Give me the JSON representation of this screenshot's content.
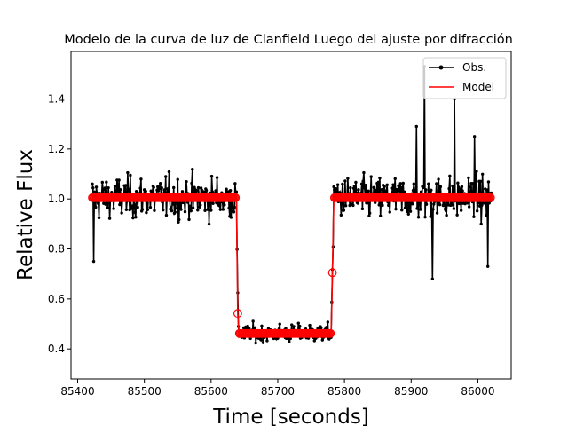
{
  "chart_data": {
    "type": "line",
    "title": "Modelo de la curva de luz de Clanfield Luego del ajuste por difracción",
    "xlabel": "Time [seconds]",
    "ylabel": "Relative Flux",
    "xlim": [
      85390,
      86050
    ],
    "ylim": [
      0.28,
      1.59
    ],
    "xticks": [
      85400,
      85500,
      85600,
      85700,
      85800,
      85900,
      86000
    ],
    "yticks": [
      0.4,
      0.6,
      0.8,
      1.0,
      1.2,
      1.4
    ],
    "xtick_labels": [
      "85400",
      "85500",
      "85600",
      "85700",
      "85800",
      "85900",
      "86000"
    ],
    "ytick_labels": [
      "0.4",
      "0.6",
      "0.8",
      "1.0",
      "1.2",
      "1.4"
    ],
    "grid": false,
    "legend": {
      "position": "top-right",
      "entries": [
        "Obs.",
        "Model"
      ]
    },
    "colors": {
      "obs": "#000000",
      "model": "#ff0000"
    },
    "series": [
      {
        "name": "Obs.",
        "style": "line-with-dots",
        "noise_sigma_out": 0.07,
        "noise_sigma_in": 0.03,
        "x_range": [
          85422,
          86020
        ],
        "sample_step": 1,
        "notable_points": [
          {
            "x": 85920,
            "y": 1.53
          },
          {
            "x": 85965,
            "y": 1.4
          },
          {
            "x": 85908,
            "y": 1.29
          },
          {
            "x": 85995,
            "y": 1.25
          },
          {
            "x": 85932,
            "y": 0.68
          },
          {
            "x": 85424,
            "y": 0.75
          },
          {
            "x": 86015,
            "y": 0.73
          }
        ]
      },
      {
        "name": "Model",
        "style": "line",
        "points": [
          {
            "x": 85422,
            "y": 1.005
          },
          {
            "x": 85638,
            "y": 1.005
          },
          {
            "x": 85640,
            "y": 0.54
          },
          {
            "x": 85642,
            "y": 0.462
          },
          {
            "x": 85780,
            "y": 0.462
          },
          {
            "x": 85782,
            "y": 0.7
          },
          {
            "x": 85784,
            "y": 1.005
          },
          {
            "x": 86020,
            "y": 1.005
          }
        ],
        "baseline": 1.005,
        "occulted_level": 0.462,
        "ingress_x": 85640,
        "egress_x": 85782,
        "transition_points": [
          {
            "x": 85640,
            "y": 0.542
          },
          {
            "x": 85782,
            "y": 0.705
          }
        ]
      }
    ]
  }
}
